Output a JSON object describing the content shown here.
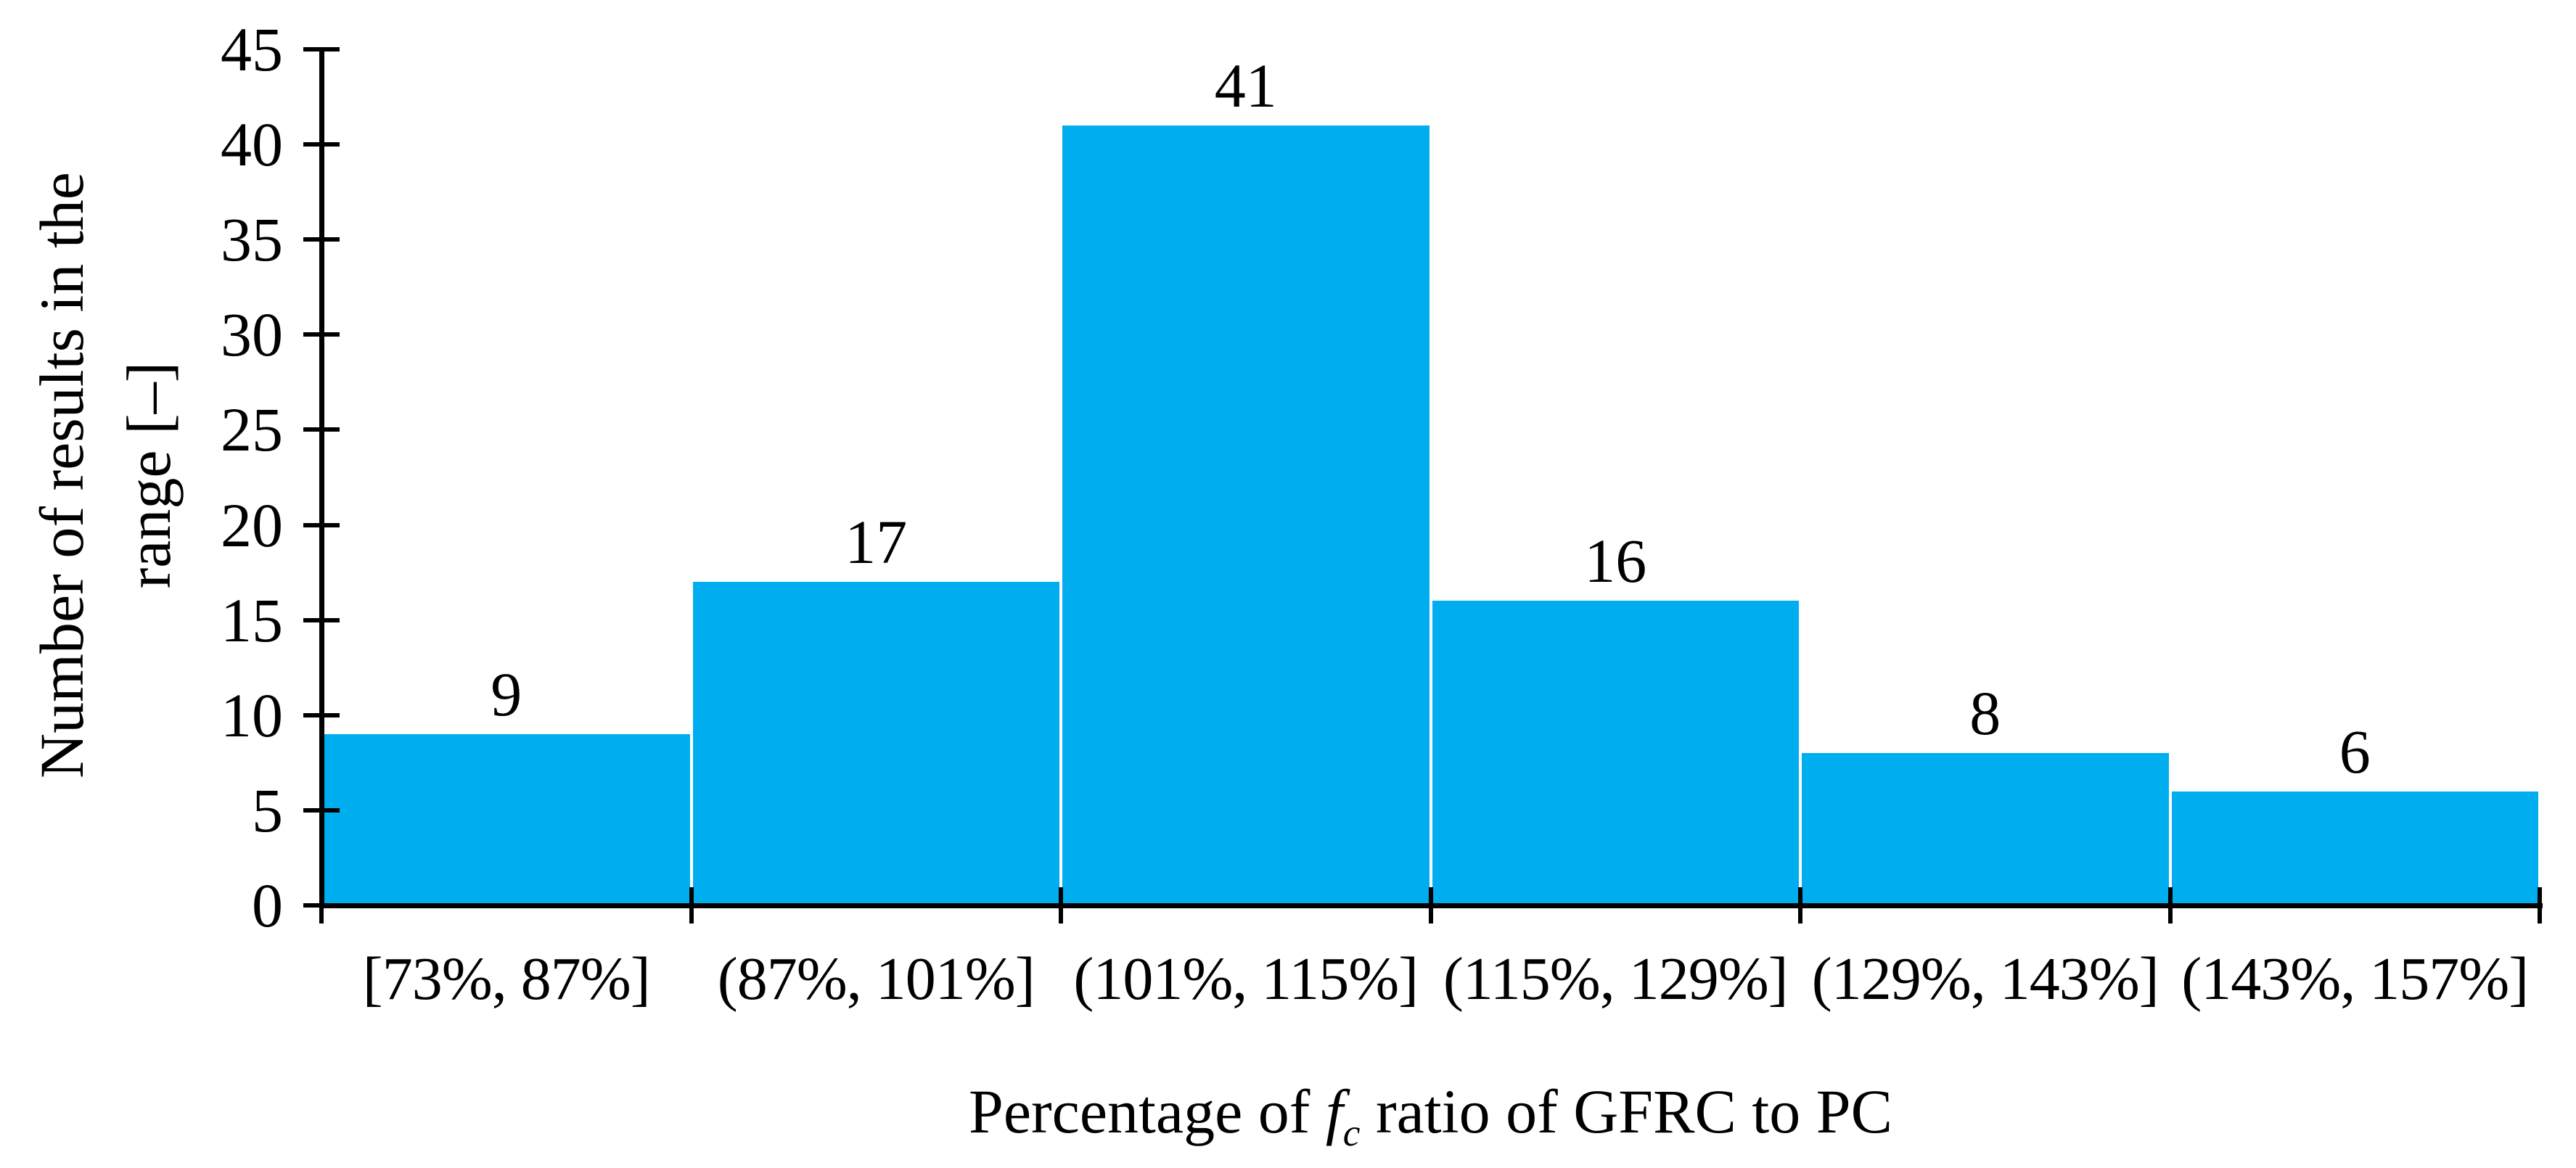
{
  "figure": {
    "background": "#ffffff"
  },
  "chart_data": {
    "type": "bar",
    "title": "",
    "categories": [
      "[73%, 87%]",
      "(87%, 101%]",
      "(101%, 115%]",
      "(115%, 129%]",
      "(129%, 143%]",
      "(143%, 157%]"
    ],
    "values": [
      9,
      17,
      41,
      16,
      8,
      6
    ],
    "bar_value_labels": [
      "9",
      "17",
      "41",
      "16",
      "8",
      "6"
    ],
    "y_ticks": [
      0,
      5,
      10,
      15,
      20,
      25,
      30,
      35,
      40,
      45
    ],
    "ylim": [
      0,
      45
    ],
    "ylabel_lines": [
      "Number of results in the",
      "range [–]"
    ],
    "xlabel_parts": {
      "prefix": "Percentage of ",
      "italic_var": "f",
      "subscript": "c",
      "suffix": " ratio of GFRC to PC"
    },
    "grid": false,
    "legend_position": "none",
    "bar_color": "#00AEEF",
    "axis_color": "#000000",
    "text_color": "#000000"
  }
}
